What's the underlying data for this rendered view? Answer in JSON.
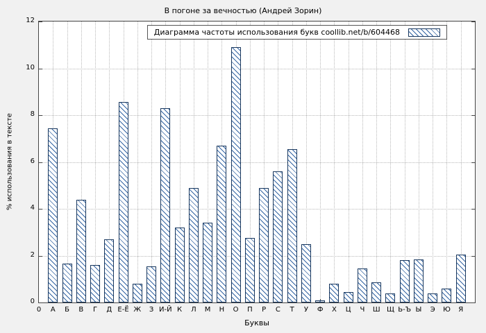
{
  "chart_data": {
    "type": "bar",
    "title": "В погоне за вечностью (Андрей Зорин)",
    "legend": "Диаграмма частоты использования букв coollib.net/b/604468",
    "xlabel": "Буквы",
    "ylabel": "% использования в тексте",
    "origin_label": "0",
    "categories": [
      "А",
      "Б",
      "В",
      "Г",
      "Д",
      "Е-Ё",
      "Ж",
      "З",
      "И-Й",
      "К",
      "Л",
      "М",
      "Н",
      "О",
      "П",
      "Р",
      "С",
      "Т",
      "У",
      "Ф",
      "Х",
      "Ц",
      "Ч",
      "Ш",
      "Щ",
      "Ь-Ъ",
      "Ы",
      "Э",
      "Ю",
      "Я"
    ],
    "values": [
      7.45,
      1.65,
      4.4,
      1.6,
      2.7,
      8.55,
      0.8,
      1.55,
      8.3,
      3.2,
      4.9,
      3.4,
      6.7,
      10.9,
      2.75,
      4.9,
      5.6,
      6.55,
      2.5,
      0.1,
      0.8,
      0.45,
      1.45,
      0.85,
      0.4,
      1.8,
      1.85,
      0.4,
      0.6,
      2.05
    ],
    "ylim": [
      0,
      12
    ],
    "yticks": [
      0,
      2,
      4,
      6,
      8,
      10,
      12
    ],
    "grid": true,
    "legend_position": "top-right-inside",
    "colors": {
      "bar_hatch": "#3465a4",
      "bar_border": "#17365d",
      "grid": "#b8b8b8",
      "plot_bg": "#ffffff",
      "figure_bg": "#f1f1f1",
      "axis": "#444444"
    }
  }
}
